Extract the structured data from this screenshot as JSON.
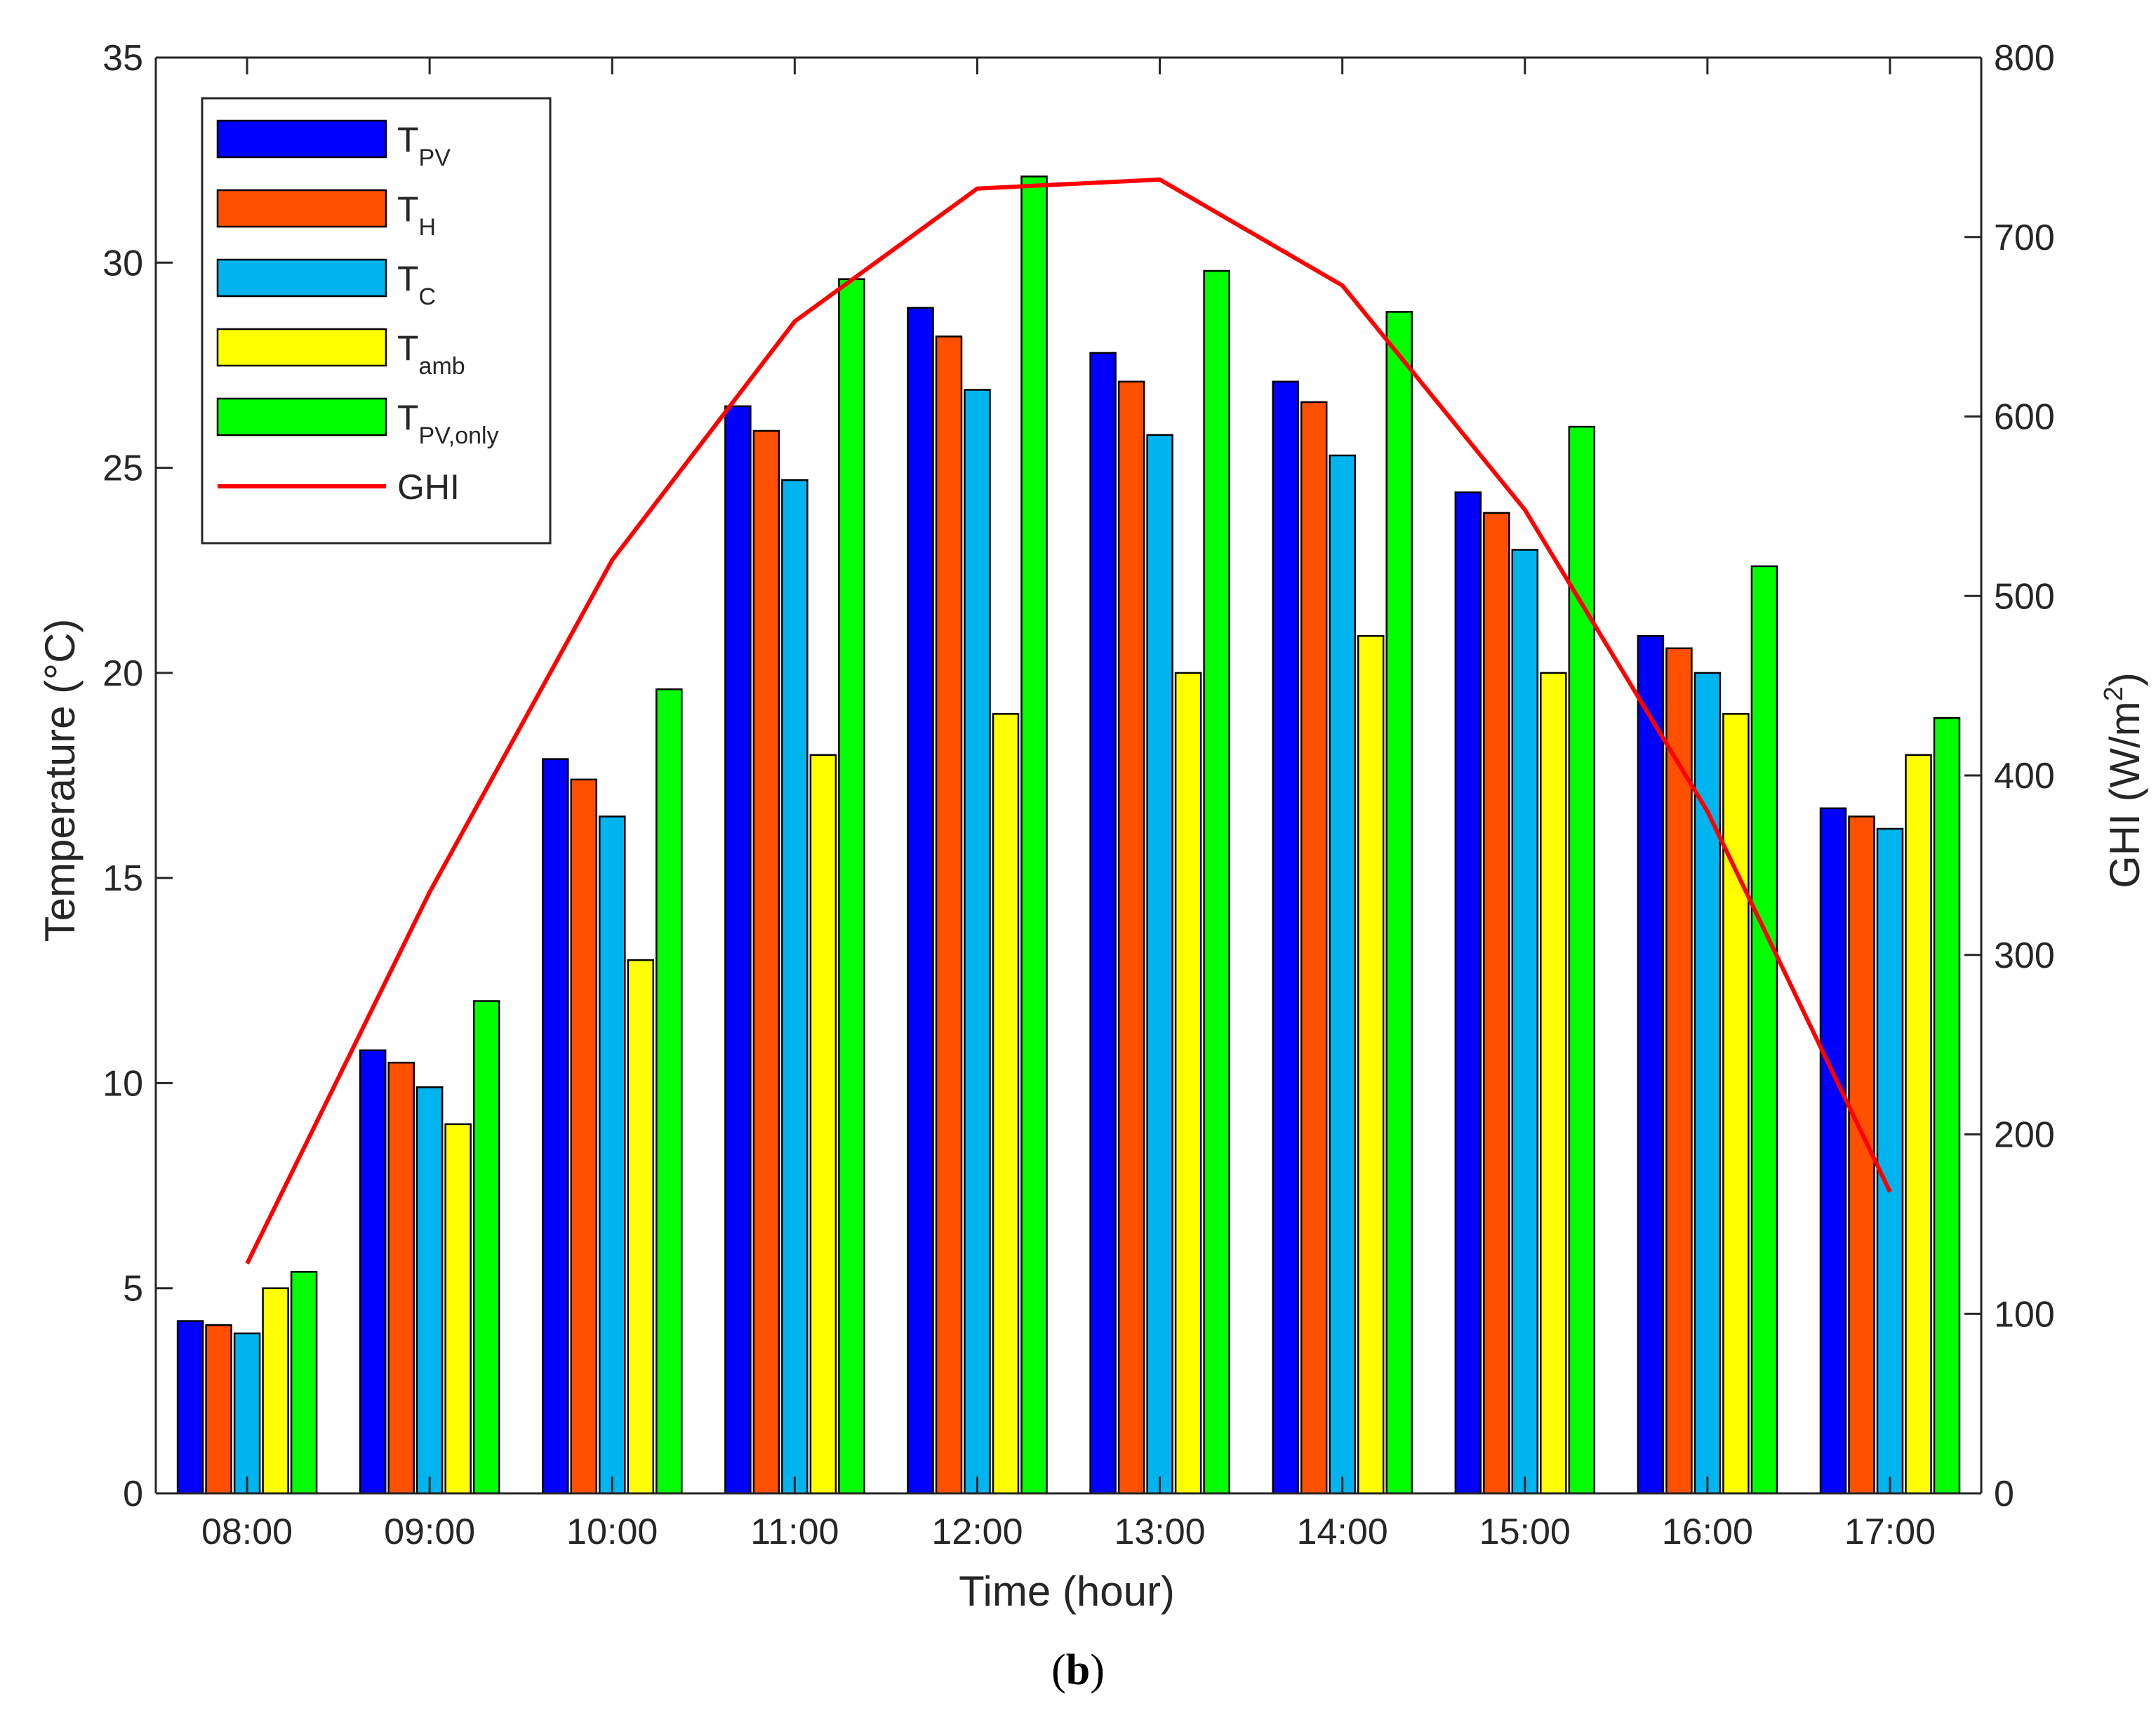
{
  "chart_data": {
    "type": "bar",
    "xlabel": "Time (hour)",
    "ylabel": "Temperature (°C)",
    "y2label_main": "GHI (W/m",
    "y2label_sup": "2",
    "y2label_close": ")",
    "panel_label_open": "(",
    "panel_label_letter": "b",
    "panel_label_close": ")",
    "ylim": [
      0,
      35
    ],
    "yticks": [
      0,
      5,
      10,
      15,
      20,
      25,
      30,
      35
    ],
    "y2lim": [
      0,
      800
    ],
    "y2ticks": [
      0,
      100,
      200,
      300,
      400,
      500,
      600,
      700,
      800
    ],
    "legend_position": "top-left",
    "categories": [
      "08:00",
      "09:00",
      "10:00",
      "11:00",
      "12:00",
      "13:00",
      "14:00",
      "15:00",
      "16:00",
      "17:00"
    ],
    "series": [
      {
        "name": "T",
        "sub": "PV",
        "kind": "bar",
        "color": "#0000ff",
        "values": [
          4.2,
          10.8,
          17.9,
          26.5,
          28.9,
          27.8,
          27.1,
          24.4,
          20.9,
          16.7
        ]
      },
      {
        "name": "T",
        "sub": "H",
        "kind": "bar",
        "color": "#ff5000",
        "values": [
          4.1,
          10.5,
          17.4,
          25.9,
          28.2,
          27.1,
          26.6,
          23.9,
          20.6,
          16.5
        ]
      },
      {
        "name": "T",
        "sub": "C",
        "kind": "bar",
        "color": "#00b4f0",
        "values": [
          3.9,
          9.9,
          16.5,
          24.7,
          26.9,
          25.8,
          25.3,
          23.0,
          20.0,
          16.2
        ]
      },
      {
        "name": "T",
        "sub": "amb",
        "kind": "bar",
        "color": "#ffff00",
        "values": [
          5.0,
          9.0,
          13.0,
          18.0,
          19.0,
          20.0,
          20.9,
          20.0,
          19.0,
          18.0
        ]
      },
      {
        "name": "T",
        "sub": "PV,only",
        "kind": "bar",
        "color": "#00ff00",
        "values": [
          5.4,
          12.0,
          19.6,
          29.6,
          32.1,
          29.8,
          28.8,
          26.0,
          22.6,
          18.9
        ]
      },
      {
        "name": "GHI",
        "sub": "",
        "kind": "line",
        "axis": "right",
        "color": "#ff0000",
        "values": [
          128,
          335,
          520,
          653,
          727,
          732,
          673,
          548,
          380,
          168
        ]
      }
    ]
  }
}
